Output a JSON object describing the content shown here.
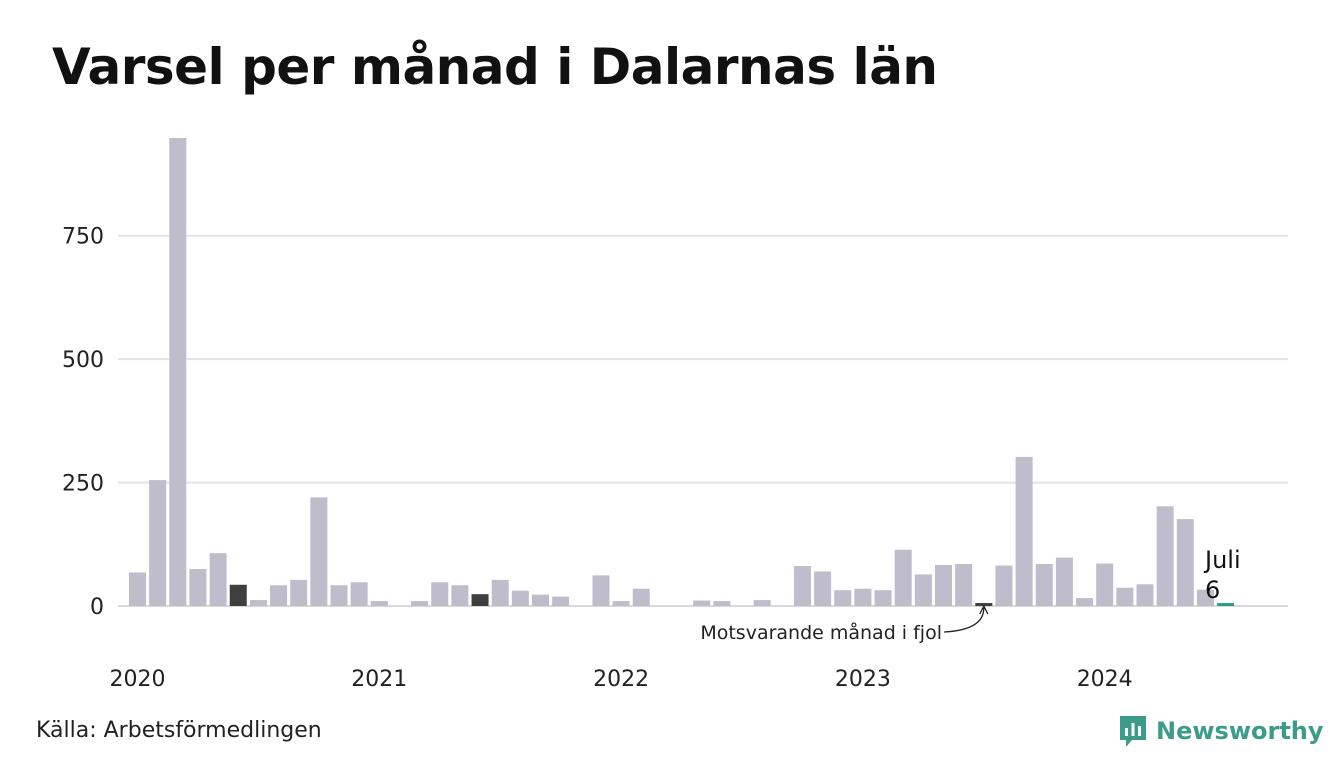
{
  "title": "Varsel per månad i Dalarnas län",
  "source": "Källa: Arbetsförmedlingen",
  "brand": {
    "name": "Newsworthy",
    "icon": "newsworthy-logo-icon",
    "color": "#3d9b8a"
  },
  "colors": {
    "bar": "#bfbdcb",
    "same_month_previous_years": "#3f3f3f",
    "latest": "#2a9d8f",
    "grid": "#e3e3e8"
  },
  "chart_data": {
    "type": "bar",
    "title": "Varsel per månad i Dalarnas län",
    "xlabel": "",
    "ylabel": "",
    "ylim": [
      0,
      950
    ],
    "yticks": [
      0,
      250,
      500,
      750
    ],
    "x_tick_labels": [
      {
        "label": "2020",
        "index": 0
      },
      {
        "label": "2021",
        "index": 12
      },
      {
        "label": "2022",
        "index": 24
      },
      {
        "label": "2023",
        "index": 36
      },
      {
        "label": "2024",
        "index": 48
      }
    ],
    "start": "2020-01",
    "values": [
      68,
      255,
      948,
      75,
      107,
      43,
      12,
      42,
      53,
      220,
      42,
      48,
      10,
      0,
      10,
      48,
      42,
      24,
      53,
      31,
      23,
      19,
      0,
      62,
      10,
      35,
      0,
      0,
      11,
      10,
      0,
      12,
      0,
      81,
      70,
      32,
      35,
      32,
      114,
      64,
      83,
      85,
      6,
      82,
      302,
      85,
      98,
      16,
      86,
      37,
      44,
      202,
      176,
      33,
      6
    ],
    "highlight_same_month": [
      5,
      17,
      42
    ],
    "latest_index": 54,
    "annotations": {
      "latest_month": "Juli",
      "latest_value": "6",
      "previous_year": "Motsvarande månad i fjol"
    },
    "grid": true,
    "legend": "none"
  }
}
